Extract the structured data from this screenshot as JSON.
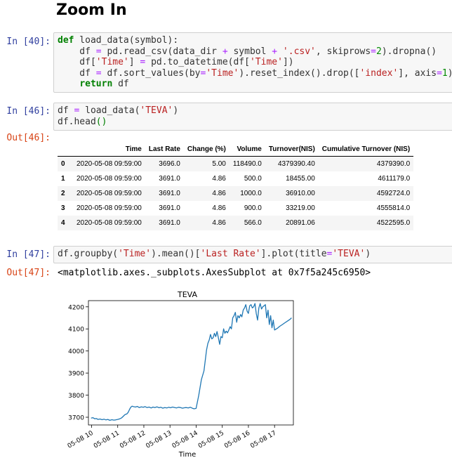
{
  "heading": "Zoom In",
  "cells": {
    "c40": {
      "prompt": "In [40]:",
      "lines": [
        [
          {
            "t": "def",
            "c": "kw"
          },
          {
            "t": " load_data(symbol):"
          }
        ],
        [
          {
            "t": "    df "
          },
          {
            "t": "=",
            "c": "op"
          },
          {
            "t": " pd.read_csv(data_dir "
          },
          {
            "t": "+",
            "c": "op"
          },
          {
            "t": " symbol "
          },
          {
            "t": "+",
            "c": "op"
          },
          {
            "t": " "
          },
          {
            "t": "'.csv'",
            "c": "str"
          },
          {
            "t": ", skiprows"
          },
          {
            "t": "=",
            "c": "op"
          },
          {
            "t": "2",
            "c": "num"
          },
          {
            "t": ").dropna()"
          }
        ],
        [
          {
            "t": "    df["
          },
          {
            "t": "'Time'",
            "c": "str"
          },
          {
            "t": "] "
          },
          {
            "t": "=",
            "c": "op"
          },
          {
            "t": " pd.to_datetime(df["
          },
          {
            "t": "'Time'",
            "c": "str"
          },
          {
            "t": "])"
          }
        ],
        [
          {
            "t": "    df "
          },
          {
            "t": "=",
            "c": "op"
          },
          {
            "t": " df.sort_values(by"
          },
          {
            "t": "=",
            "c": "op"
          },
          {
            "t": "'Time'",
            "c": "str"
          },
          {
            "t": ").reset_index().drop(["
          },
          {
            "t": "'index'",
            "c": "str"
          },
          {
            "t": "], axis"
          },
          {
            "t": "=",
            "c": "op"
          },
          {
            "t": "1",
            "c": "num"
          },
          {
            "t": ")"
          }
        ],
        [
          {
            "t": "    "
          },
          {
            "t": "return",
            "c": "kw"
          },
          {
            "t": " df"
          }
        ]
      ]
    },
    "c46": {
      "prompt": "In [46]:",
      "out_prompt": "Out[46]:",
      "lines": [
        [
          {
            "t": "df "
          },
          {
            "t": "=",
            "c": "op"
          },
          {
            "t": " load_data("
          },
          {
            "t": "'TEVA'",
            "c": "str"
          },
          {
            "t": ")"
          }
        ],
        [
          {
            "t": "df.head"
          },
          {
            "t": "()",
            "c": "par"
          }
        ]
      ]
    },
    "c47": {
      "prompt": "In [47]:",
      "out_prompt": "Out[47]:",
      "lines": [
        [
          {
            "t": "df.groupby("
          },
          {
            "t": "'Time'",
            "c": "str"
          },
          {
            "t": ").mean()["
          },
          {
            "t": "'Last Rate'",
            "c": "str"
          },
          {
            "t": "].plot(title"
          },
          {
            "t": "=",
            "c": "op"
          },
          {
            "t": "'TEVA'",
            "c": "str"
          },
          {
            "t": ")"
          }
        ]
      ],
      "out_text": "<matplotlib.axes._subplots.AxesSubplot at 0x7f5a245c6950>"
    }
  },
  "dataframe": {
    "columns": [
      "",
      "Time",
      "Last Rate",
      "Change (%)",
      "Volume",
      "Turnover(NIS)",
      "Cumulative Turnover (NIS)"
    ],
    "rows": [
      [
        "0",
        "2020-05-08 09:59:00",
        "3696.0",
        "5.00",
        "118490.0",
        "4379390.40",
        "4379390.0"
      ],
      [
        "1",
        "2020-05-08 09:59:00",
        "3691.0",
        "4.86",
        "500.0",
        "18455.00",
        "4611179.0"
      ],
      [
        "2",
        "2020-05-08 09:59:00",
        "3691.0",
        "4.86",
        "1000.0",
        "36910.00",
        "4592724.0"
      ],
      [
        "3",
        "2020-05-08 09:59:00",
        "3691.0",
        "4.86",
        "900.0",
        "33219.00",
        "4555814.0"
      ],
      [
        "4",
        "2020-05-08 09:59:00",
        "3691.0",
        "4.86",
        "566.0",
        "20891.06",
        "4522595.0"
      ]
    ]
  },
  "chart_data": {
    "type": "line",
    "title": "TEVA",
    "xlabel": "Time",
    "ylabel": "",
    "x_tick_labels": [
      "05-08 10",
      "05-08 11",
      "05-08 12",
      "05-08 13",
      "05-08 14",
      "05-08 15",
      "05-08 16",
      "05-08 17"
    ],
    "x_ticks_hours": [
      10,
      11,
      12,
      13,
      14,
      15,
      16,
      17
    ],
    "y_ticks": [
      3700,
      3800,
      3900,
      4000,
      4100,
      4200
    ],
    "xlim_hours": [
      9.88,
      17.72
    ],
    "ylim": [
      3665,
      4228
    ],
    "grid": false,
    "legend": "none",
    "line_color": "#1f77b4",
    "series": [
      {
        "x_hours": [
          9.98,
          10.05,
          10.12,
          10.18,
          10.25,
          10.32,
          10.4,
          10.48,
          10.55,
          10.62,
          10.7,
          10.78,
          10.85,
          10.92,
          11.0,
          11.08,
          11.15,
          11.22,
          11.28,
          11.35,
          11.4,
          11.45,
          11.5,
          11.55,
          11.6,
          11.68,
          11.75,
          11.82,
          11.9,
          11.98,
          12.05,
          12.12,
          12.2,
          12.28,
          12.35,
          12.42,
          12.5,
          12.58,
          12.65,
          12.72,
          12.8,
          12.88,
          12.95,
          13.02,
          13.1,
          13.18,
          13.25,
          13.32,
          13.4,
          13.48,
          13.55,
          13.62,
          13.7,
          13.78,
          13.85,
          13.92,
          14.0,
          14.1,
          14.2,
          14.3,
          14.4,
          14.45,
          14.5,
          14.55,
          14.6,
          14.65,
          14.7,
          14.75,
          14.8,
          14.85,
          14.9,
          14.95,
          15.0,
          15.05,
          15.1,
          15.15,
          15.2,
          15.25,
          15.3,
          15.35,
          15.4,
          15.45,
          15.5,
          15.55,
          15.6,
          15.65,
          15.7,
          15.75,
          15.8,
          15.85,
          15.9,
          15.95,
          16.0,
          16.05,
          16.1,
          16.15,
          16.2,
          16.25,
          16.3,
          16.35,
          16.4,
          16.45,
          16.5,
          16.55,
          16.6,
          16.65,
          16.7,
          16.75,
          16.8,
          16.85,
          16.9,
          16.95,
          17.0,
          17.1,
          17.2,
          17.3,
          17.4,
          17.5,
          17.6,
          17.65
        ],
        "y": [
          3696,
          3698,
          3693,
          3694,
          3690,
          3692,
          3689,
          3691,
          3688,
          3690,
          3686,
          3689,
          3687,
          3688,
          3690,
          3693,
          3697,
          3705,
          3712,
          3715,
          3722,
          3735,
          3745,
          3750,
          3748,
          3746,
          3749,
          3744,
          3747,
          3745,
          3748,
          3744,
          3746,
          3742,
          3746,
          3744,
          3747,
          3743,
          3745,
          3741,
          3744,
          3742,
          3745,
          3743,
          3746,
          3744,
          3742,
          3745,
          3744,
          3741,
          3743,
          3744,
          3742,
          3745,
          3741,
          3738,
          3740,
          3800,
          3870,
          3910,
          4005,
          4035,
          4050,
          4075,
          4055,
          4060,
          4080,
          4065,
          4088,
          4060,
          4030,
          4065,
          4060,
          4100,
          4080,
          4090,
          4082,
          4095,
          4110,
          4100,
          4150,
          4160,
          4175,
          4130,
          4160,
          4150,
          4165,
          4155,
          4185,
          4195,
          4210,
          4180,
          4170,
          4205,
          4210,
          4195,
          4200,
          4215,
          4170,
          4140,
          4195,
          4215,
          4190,
          4200,
          4205,
          4210,
          4150,
          4185,
          4120,
          4160,
          4105,
          4140,
          4095,
          4102,
          4112,
          4120,
          4128,
          4136,
          4144,
          4150
        ]
      }
    ]
  }
}
